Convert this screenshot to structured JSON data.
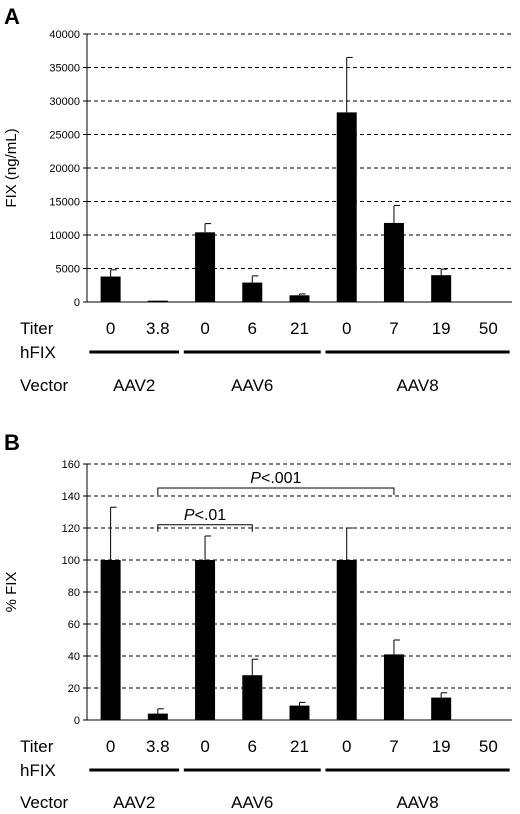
{
  "chart_data": [
    {
      "panel": "A",
      "type": "bar",
      "ylabel": "FIX (ng/mL)",
      "ylim": [
        0,
        40000
      ],
      "yticks": [
        0,
        5000,
        10000,
        15000,
        20000,
        25000,
        30000,
        35000,
        40000
      ],
      "grid": true,
      "row_label_titer": "Titer",
      "row_label_vector": [
        "hFIX",
        "Vector"
      ],
      "categories": [
        "0",
        "3.8",
        "0",
        "6",
        "21",
        "0",
        "7",
        "19",
        "50"
      ],
      "values": [
        3800,
        200,
        10400,
        2900,
        1000,
        28300,
        11800,
        4000,
        0
      ],
      "errors": [
        1000,
        0,
        1300,
        1000,
        200,
        8200,
        2600,
        900,
        0
      ],
      "groups": [
        {
          "label": "AAV2",
          "start": 0,
          "end": 1
        },
        {
          "label": "AAV6",
          "start": 2,
          "end": 4
        },
        {
          "label": "AAV8",
          "start": 5,
          "end": 8
        }
      ]
    },
    {
      "panel": "B",
      "type": "bar",
      "ylabel": "% FIX",
      "ylim": [
        0,
        160
      ],
      "yticks": [
        0,
        20,
        40,
        60,
        80,
        100,
        120,
        140,
        160
      ],
      "grid": true,
      "row_label_titer": "Titer",
      "row_label_vector": [
        "hFIX",
        "Vector"
      ],
      "categories": [
        "0",
        "3.8",
        "0",
        "6",
        "21",
        "0",
        "7",
        "19",
        "50"
      ],
      "values": [
        100,
        4,
        100,
        28,
        9,
        100,
        41,
        14,
        0
      ],
      "errors": [
        33,
        3,
        15,
        10,
        2,
        20,
        9,
        3,
        0
      ],
      "groups": [
        {
          "label": "AAV2",
          "start": 0,
          "end": 1
        },
        {
          "label": "AAV6",
          "start": 2,
          "end": 4
        },
        {
          "label": "AAV8",
          "start": 5,
          "end": 8
        }
      ],
      "annotations": [
        {
          "prefix": "P",
          "text": "<.01",
          "from": 1,
          "to": 3
        },
        {
          "prefix": "P",
          "text": "<.001",
          "from": 1,
          "to": 6
        }
      ]
    }
  ]
}
